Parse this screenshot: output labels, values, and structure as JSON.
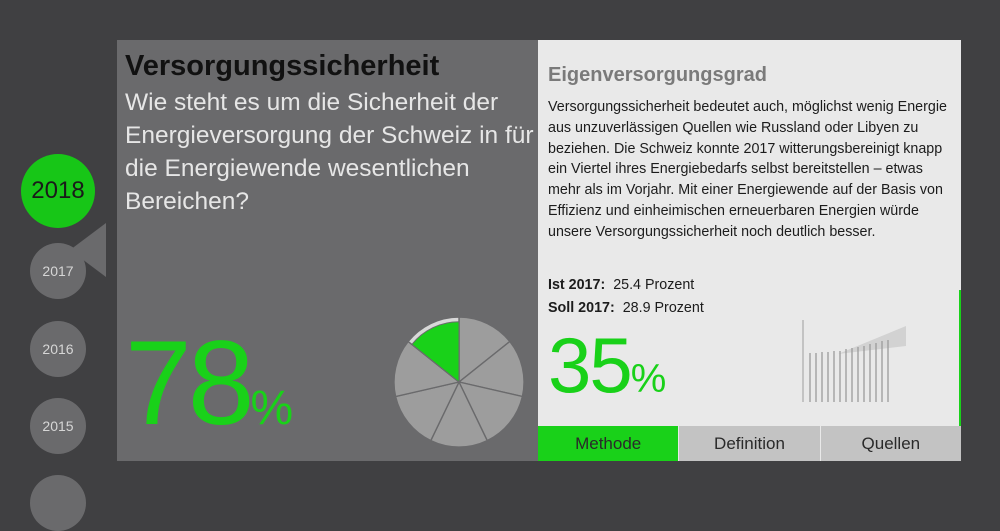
{
  "years": [
    {
      "label": "2018",
      "active": true
    },
    {
      "label": "2017",
      "active": false
    },
    {
      "label": "2016",
      "active": false
    },
    {
      "label": "2015",
      "active": false
    },
    {
      "label": "",
      "active": false
    }
  ],
  "left": {
    "title": "Versorgungssicherheit",
    "question": "Wie steht es um die Sicherheit der Energieversorgung der Schweiz in für die Energiewende wesentlichen Bereichen?",
    "score_value": "78",
    "score_unit": "%"
  },
  "right": {
    "title": "Eigenversorgungsgrad",
    "description": "Versorgungssicherheit bedeutet auch, möglichst wenig Energie aus unzuverlässigen Quellen wie Russland oder Libyen zu beziehen. Die Schweiz konnte 2017 witterungsbereinigt knapp ein Viertel ihres Energiebedarfs selbst bereitstellen – etwas mehr als im Vorjahr. Mit einer Energiewende auf der Basis von Effizienz und einheimischen erneuerbaren Energien würde unsere Versorgungssicherheit noch deutlich besser.",
    "ist_label": "Ist 2017:",
    "ist_value": "25.4 Prozent",
    "soll_label": "Soll 2017:",
    "soll_value": "28.9 Prozent",
    "pct_value": "35",
    "pct_unit": "%"
  },
  "tabs": [
    {
      "label": "Methode",
      "active": true
    },
    {
      "label": "Definition",
      "active": false
    },
    {
      "label": "Quellen",
      "active": false
    }
  ],
  "colors": {
    "accent_green": "#19d119",
    "panel_dark": "#6a6a6c",
    "panel_light": "#e9e9e9",
    "background": "#404042"
  }
}
